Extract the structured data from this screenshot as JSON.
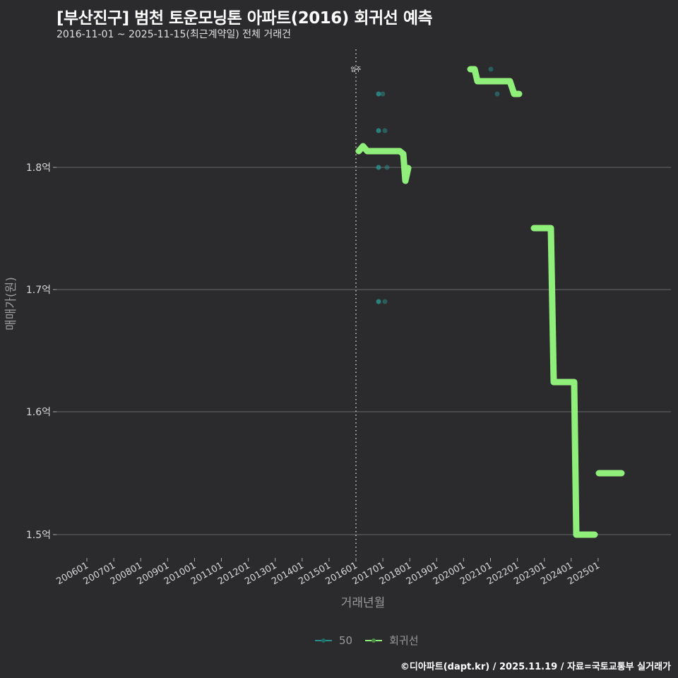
{
  "header": {
    "title": "[부산진구] 범천 토운모닝톤 아파트(2016) 회귀선 예측",
    "subtitle": "2016-11-01 ~ 2025-11-15(최근계약일) 전체 거래건"
  },
  "axes": {
    "x_title": "거래년월",
    "y_title": "매매가(원)",
    "x_ticks": [
      "200601",
      "200701",
      "200801",
      "200901",
      "201001",
      "201101",
      "201201",
      "201301",
      "201401",
      "201501",
      "201601",
      "201701",
      "201801",
      "201901",
      "202001",
      "202101",
      "202201",
      "202301",
      "202401",
      "202501"
    ],
    "y_ticks": [
      "1.8억",
      "1.7억",
      "1.6억",
      "1.5억"
    ]
  },
  "annotation": {
    "label": "입주",
    "x": "201601"
  },
  "legend": {
    "items": [
      {
        "label": "50",
        "color": "#2a8f8a"
      },
      {
        "label": "회귀선",
        "color": "#90ee7a"
      }
    ]
  },
  "caption": "©디아파트(dapt.kr) / 2025.11.19 / 자료=국토교통부 실거래가",
  "colors": {
    "background": "#2b2a2c",
    "grid": "#6a6a6a",
    "points": "#2a8f8a",
    "regression": "#90ee7a"
  },
  "chart_data": {
    "type": "scatter",
    "title": "[부산진구] 범천 토운모닝톤 아파트(2016) 회귀선 예측",
    "subtitle": "2016-11-01 ~ 2025-11-15(최근계약일) 전체 거래건",
    "xlabel": "거래년월",
    "ylabel": "매매가(원)",
    "x_range": [
      "200601",
      "202601"
    ],
    "ylim": [
      1.485,
      1.9
    ],
    "y_unit": "억",
    "grid": true,
    "legend_position": "bottom",
    "vertical_reference_line": {
      "x": "201601",
      "label": "입주"
    },
    "series": [
      {
        "name": "50",
        "kind": "points",
        "points": [
          {
            "x": "2016-11",
            "y": 1.86
          },
          {
            "x": "2016-12",
            "y": 1.86
          },
          {
            "x": "2016-11",
            "y": 1.83
          },
          {
            "x": "2016-12",
            "y": 1.83
          },
          {
            "x": "2016-11",
            "y": 1.8
          },
          {
            "x": "2017-01",
            "y": 1.8
          },
          {
            "x": "2016-11",
            "y": 1.69
          },
          {
            "x": "2016-12",
            "y": 1.69
          },
          {
            "x": "2020-10",
            "y": 1.88
          },
          {
            "x": "2021-01",
            "y": 1.86
          }
        ]
      },
      {
        "name": "회귀선",
        "kind": "line",
        "points": [
          {
            "x": "2016-01",
            "y": 1.813
          },
          {
            "x": "2016-04",
            "y": 1.818
          },
          {
            "x": "2016-06",
            "y": 1.813
          },
          {
            "x": "2017-07",
            "y": 1.813
          },
          {
            "x": "2017-09",
            "y": 1.81
          },
          {
            "x": "2017-11",
            "y": 1.787
          },
          {
            "x": "2018-01",
            "y": 1.8
          },
          {
            "x": "2020-03",
            "y": 1.88
          },
          {
            "x": "2020-06",
            "y": 1.88
          },
          {
            "x": "2020-08",
            "y": 1.87
          },
          {
            "x": "2021-08",
            "y": 1.87
          },
          {
            "x": "2021-10",
            "y": 1.86
          },
          {
            "x": "2022-01",
            "y": 1.86
          },
          {
            "x": "2022-06",
            "y": 1.75
          },
          {
            "x": "2023-03",
            "y": 1.75
          },
          {
            "x": "2023-05",
            "y": 1.625
          },
          {
            "x": "2024-02",
            "y": 1.625
          },
          {
            "x": "2024-03",
            "y": 1.5
          },
          {
            "x": "2025-01",
            "y": 1.5
          },
          {
            "x": "2025-01",
            "y": 1.55
          },
          {
            "x": "2026-01",
            "y": 1.55
          }
        ]
      }
    ]
  }
}
